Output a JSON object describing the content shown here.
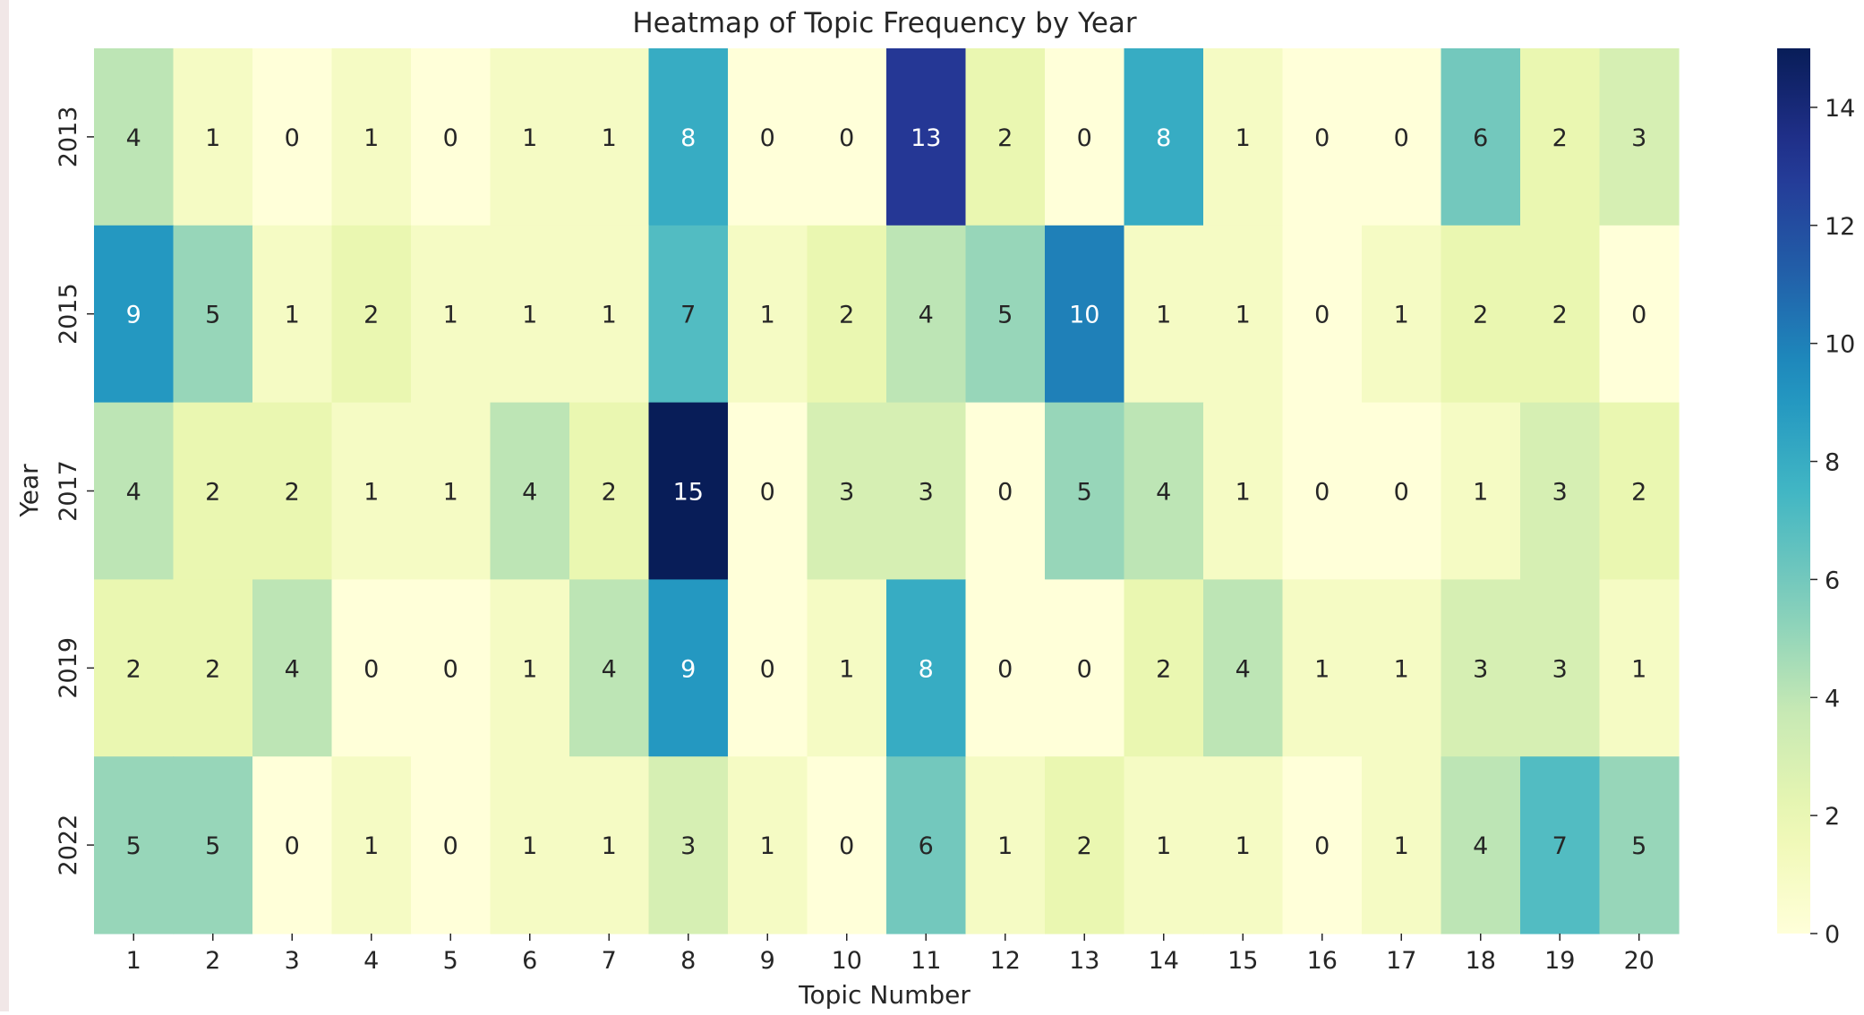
{
  "chart_data": {
    "type": "heatmap",
    "title": "Heatmap of Topic Frequency by Year",
    "xlabel": "Topic Number",
    "ylabel": "Year",
    "x": [
      "1",
      "2",
      "3",
      "4",
      "5",
      "6",
      "7",
      "8",
      "9",
      "10",
      "11",
      "12",
      "13",
      "14",
      "15",
      "16",
      "17",
      "18",
      "19",
      "20"
    ],
    "y": [
      "2013",
      "2015",
      "2017",
      "2019",
      "2022"
    ],
    "values": [
      [
        4,
        1,
        0,
        1,
        0,
        1,
        1,
        8,
        0,
        0,
        13,
        2,
        0,
        8,
        1,
        0,
        0,
        6,
        2,
        3
      ],
      [
        9,
        5,
        1,
        2,
        1,
        1,
        1,
        7,
        1,
        2,
        4,
        5,
        10,
        1,
        1,
        0,
        1,
        2,
        2,
        0
      ],
      [
        4,
        2,
        2,
        1,
        1,
        4,
        2,
        15,
        0,
        3,
        3,
        0,
        5,
        4,
        1,
        0,
        0,
        1,
        3,
        2
      ],
      [
        2,
        2,
        4,
        0,
        0,
        1,
        4,
        9,
        0,
        1,
        8,
        0,
        0,
        2,
        4,
        1,
        1,
        3,
        3,
        1
      ],
      [
        5,
        5,
        0,
        1,
        0,
        1,
        1,
        3,
        1,
        0,
        6,
        1,
        2,
        1,
        1,
        0,
        1,
        4,
        7,
        5
      ]
    ],
    "annotations_shown": true,
    "colormap": "YlGnBu",
    "colorbar": {
      "range": [
        0,
        15
      ],
      "ticks": [
        0,
        2,
        4,
        6,
        8,
        10,
        12,
        14
      ],
      "tick_labels": [
        "0",
        "2",
        "4",
        "6",
        "8",
        "10",
        "12",
        "14"
      ]
    },
    "legend": "none",
    "grid": false
  }
}
